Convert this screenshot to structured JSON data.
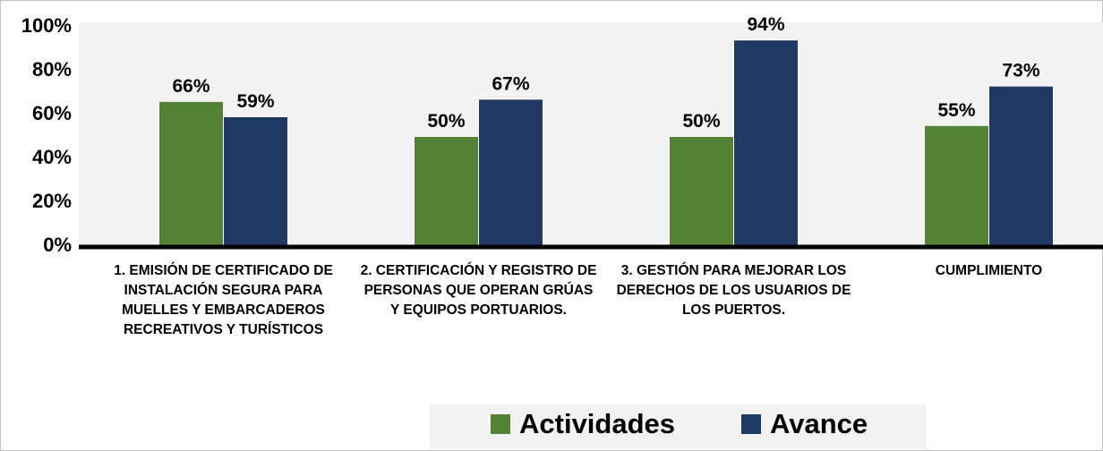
{
  "chart_data": {
    "type": "bar",
    "categories": [
      "1. EMISIÓN DE CERTIFICADO DE INSTALACIÓN SEGURA PARA MUELLES Y EMBARCADEROS RECREATIVOS Y TURÍSTICOS",
      "2. CERTIFICACIÓN Y REGISTRO DE PERSONAS QUE OPERAN GRÚAS Y EQUIPOS PORTUARIOS.",
      "3. GESTIÓN PARA MEJORAR LOS DERECHOS DE LOS USUARIOS DE LOS PUERTOS.",
      "CUMPLIMIENTO"
    ],
    "series": [
      {
        "name": "Actividades",
        "color": "#548235",
        "values": [
          66,
          50,
          50,
          55
        ],
        "value_labels": [
          "66%",
          "50%",
          "50%",
          "55%"
        ]
      },
      {
        "name": "Avance",
        "color": "#203864",
        "values": [
          59,
          67,
          94,
          73
        ],
        "value_labels": [
          "59%",
          "67%",
          "94%",
          "73%"
        ]
      }
    ],
    "ylim": [
      0,
      100
    ],
    "yticks": [
      {
        "value": 0,
        "label": "0%"
      },
      {
        "value": 20,
        "label": "20%"
      },
      {
        "value": 40,
        "label": "40%"
      },
      {
        "value": 60,
        "label": "60%"
      },
      {
        "value": 80,
        "label": "80%"
      },
      {
        "value": 100,
        "label": "100%"
      }
    ],
    "legend": "bottom"
  }
}
